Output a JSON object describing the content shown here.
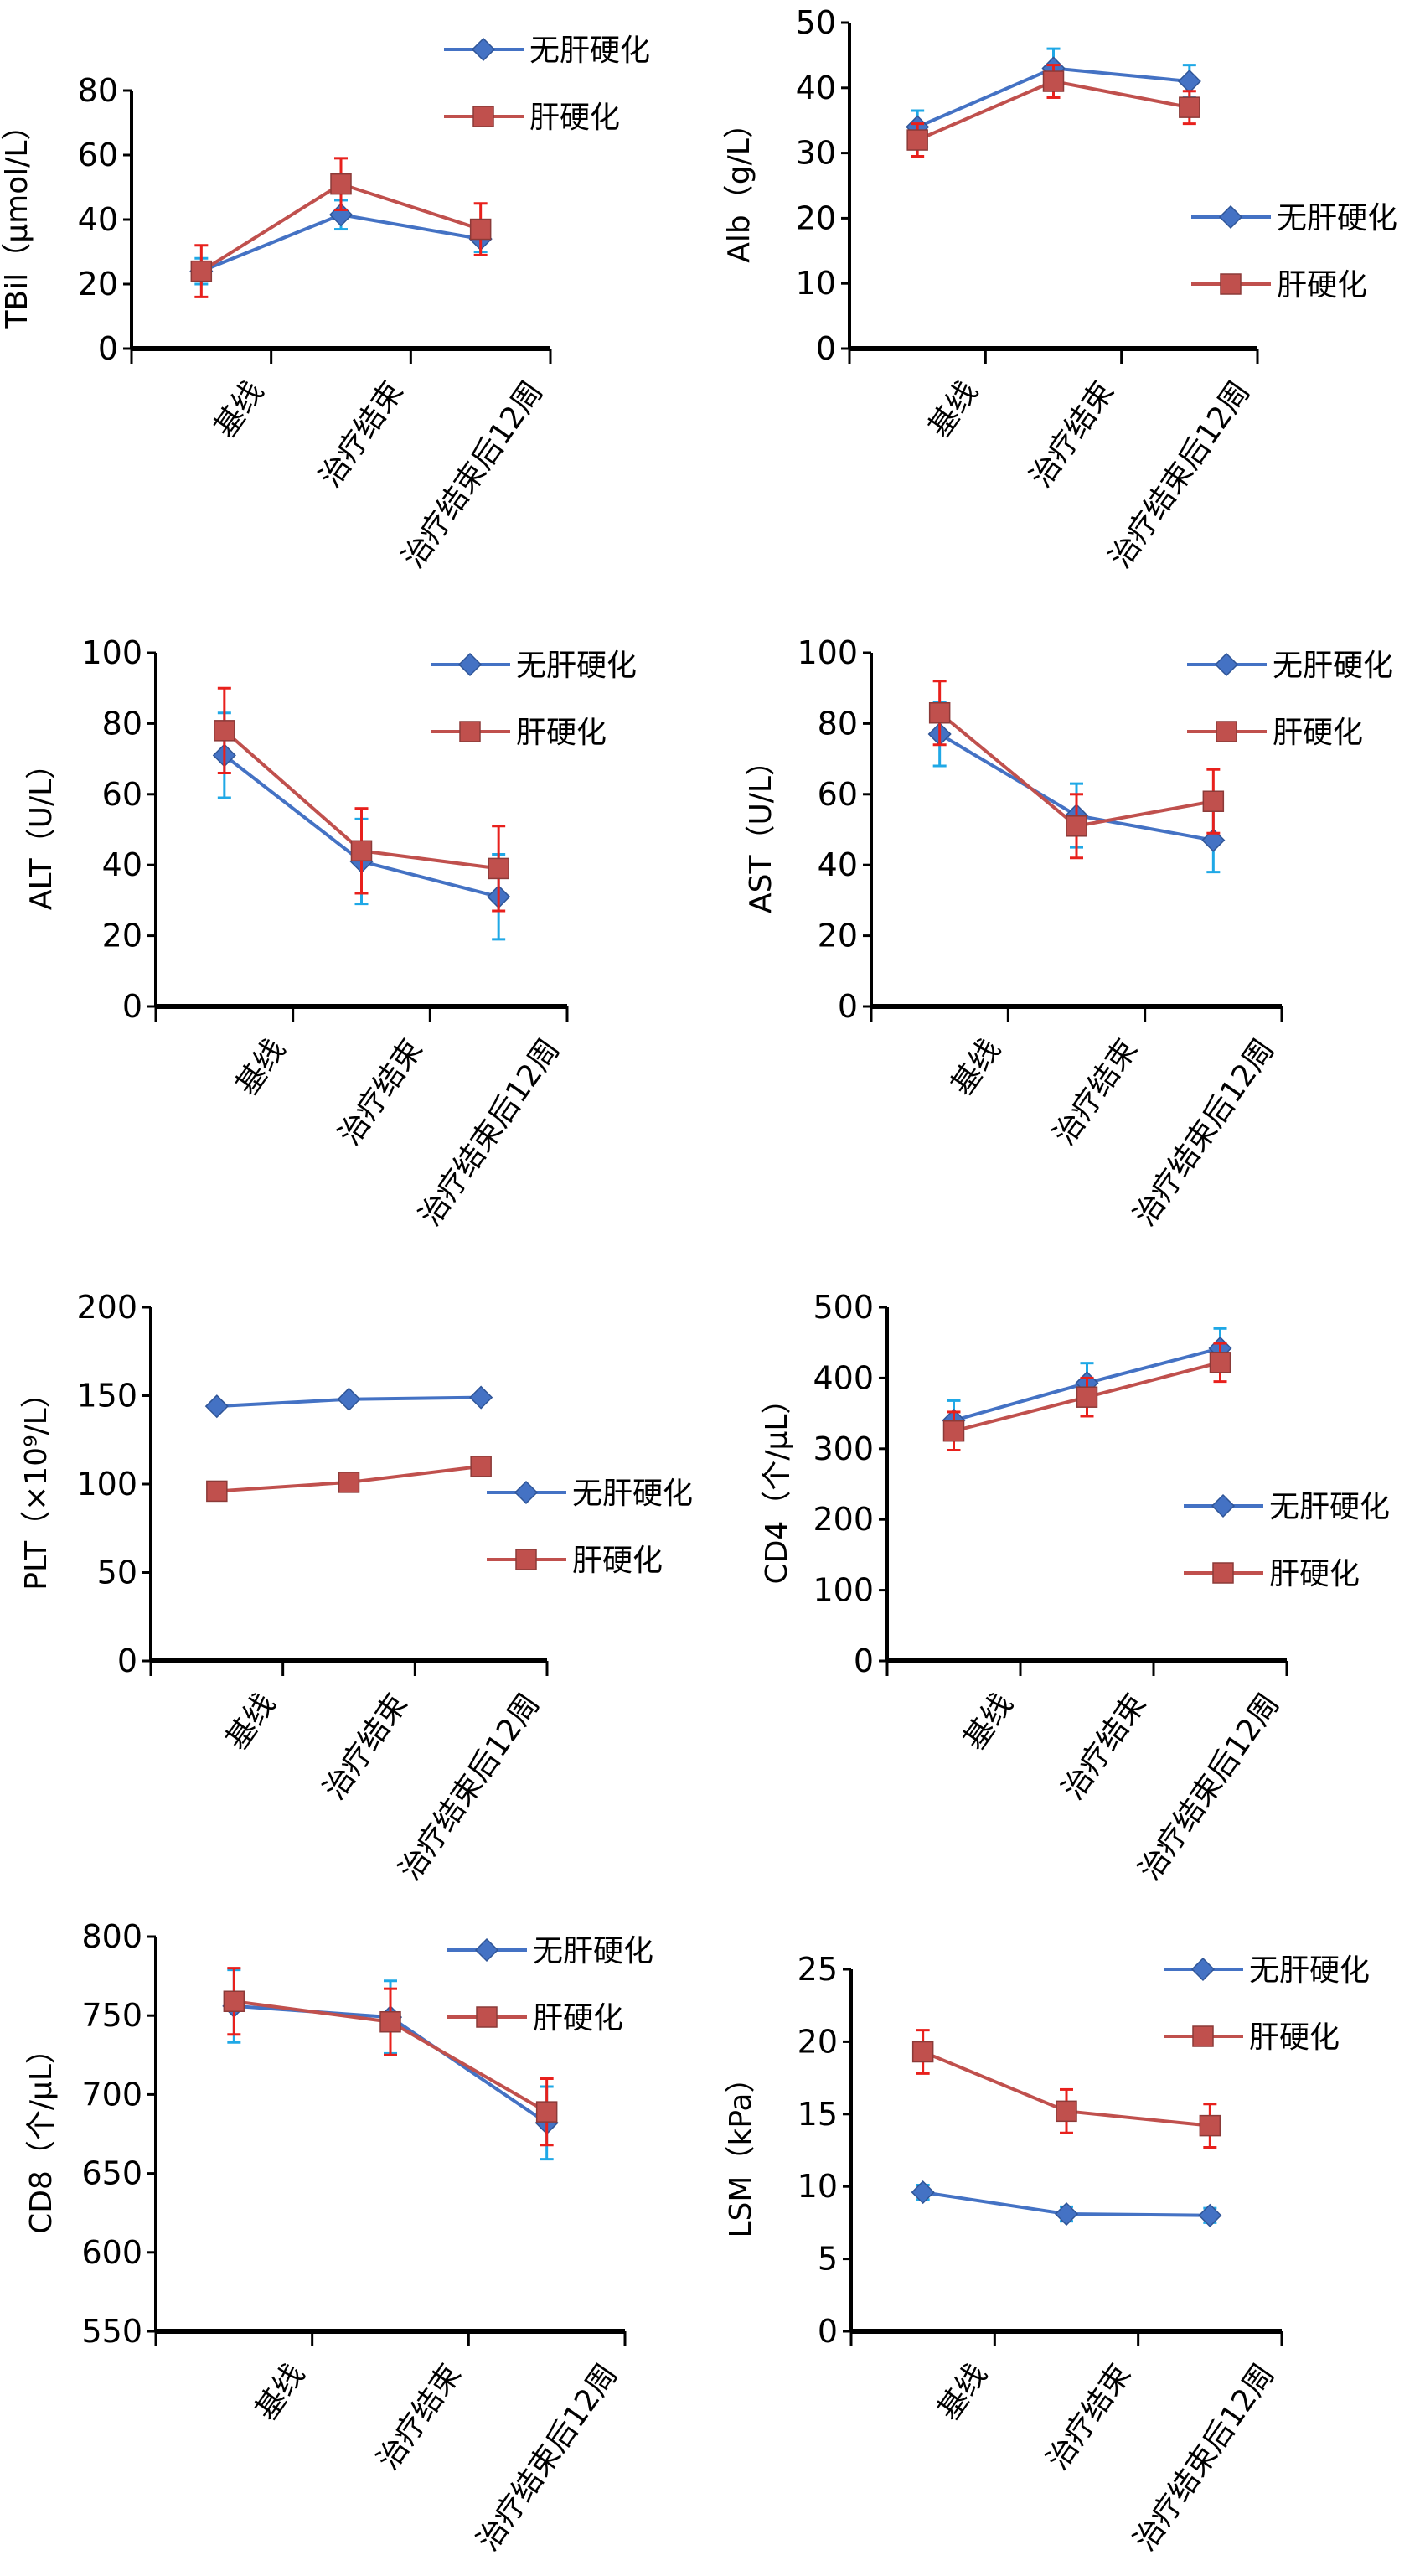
{
  "colors": {
    "no_cirrhosis": "#4472C4",
    "cirrhosis": "#C0504D",
    "no_cirrhosis_err": "#1FA8E6",
    "cirrhosis_err": "#E8201C",
    "axis": "#000000"
  },
  "chart_data": [
    {
      "type": "line",
      "ylabel": "TBil（μmol/L）",
      "categories": [
        "基线",
        "治疗结束",
        "治疗结束后12周"
      ],
      "ylim": [
        0,
        80
      ],
      "yticks": [
        0,
        20,
        40,
        60,
        80
      ],
      "legend": "top-right",
      "series": [
        {
          "name": "无肝硬化",
          "marker": "diamond",
          "values": [
            24,
            41.5,
            34
          ],
          "errors": [
            4,
            4.5,
            4
          ]
        },
        {
          "name": "肝硬化",
          "marker": "square",
          "values": [
            24,
            51,
            37
          ],
          "errors": [
            8,
            8,
            8
          ]
        }
      ]
    },
    {
      "type": "line",
      "ylabel": "Alb（g/L）",
      "categories": [
        "基线",
        "治疗结束",
        "治疗结束后12周"
      ],
      "ylim": [
        0,
        50
      ],
      "yticks": [
        0,
        10,
        20,
        30,
        40,
        50
      ],
      "legend": "right",
      "series": [
        {
          "name": "无肝硬化",
          "marker": "diamond",
          "values": [
            34,
            43,
            41
          ],
          "errors": [
            2.5,
            3,
            2.5
          ]
        },
        {
          "name": "肝硬化",
          "marker": "square",
          "values": [
            32,
            41,
            37
          ],
          "errors": [
            2.5,
            2.5,
            2.5
          ]
        }
      ]
    },
    {
      "type": "line",
      "ylabel": "ALT（U/L）",
      "categories": [
        "基线",
        "治疗结束",
        "治疗结束后12周"
      ],
      "ylim": [
        0,
        100
      ],
      "yticks": [
        0,
        20,
        40,
        60,
        80,
        100
      ],
      "legend": "top-right",
      "series": [
        {
          "name": "无肝硬化",
          "marker": "diamond",
          "values": [
            71,
            41,
            31
          ],
          "errors": [
            12,
            12,
            12
          ]
        },
        {
          "name": "肝硬化",
          "marker": "square",
          "values": [
            78,
            44,
            39
          ],
          "errors": [
            12,
            12,
            12
          ]
        }
      ]
    },
    {
      "type": "line",
      "ylabel": "AST（U/L）",
      "categories": [
        "基线",
        "治疗结束",
        "治疗结束后12周"
      ],
      "ylim": [
        0,
        100
      ],
      "yticks": [
        0,
        20,
        40,
        60,
        80,
        100
      ],
      "legend": "top-right",
      "series": [
        {
          "name": "无肝硬化",
          "marker": "diamond",
          "values": [
            77,
            54,
            47
          ],
          "errors": [
            9,
            9,
            9
          ]
        },
        {
          "name": "肝硬化",
          "marker": "square",
          "values": [
            83,
            51,
            58
          ],
          "errors": [
            9,
            9,
            9
          ]
        }
      ]
    },
    {
      "type": "line",
      "ylabel": "PLT（×10⁹/L）",
      "categories": [
        "基线",
        "治疗结束",
        "治疗结束后12周"
      ],
      "ylim": [
        0,
        200
      ],
      "yticks": [
        0,
        50,
        100,
        150,
        200
      ],
      "legend": "right",
      "series": [
        {
          "name": "无肝硬化",
          "marker": "diamond",
          "values": [
            144,
            148,
            149
          ]
        },
        {
          "name": "肝硬化",
          "marker": "square",
          "values": [
            96,
            101,
            110
          ]
        }
      ]
    },
    {
      "type": "line",
      "ylabel": "CD4（个/μL）",
      "categories": [
        "基线",
        "治疗结束",
        "治疗结束后12周"
      ],
      "ylim": [
        0,
        500
      ],
      "yticks": [
        0,
        100,
        200,
        300,
        400,
        500
      ],
      "legend": "right",
      "series": [
        {
          "name": "无肝硬化",
          "marker": "diamond",
          "values": [
            340,
            393,
            442
          ],
          "errors": [
            28,
            28,
            28
          ]
        },
        {
          "name": "肝硬化",
          "marker": "square",
          "values": [
            325,
            373,
            422
          ],
          "errors": [
            27,
            27,
            27
          ]
        }
      ]
    },
    {
      "type": "line",
      "ylabel": "CD8（个/μL）",
      "categories": [
        "基线",
        "治疗结束",
        "治疗结束后12周"
      ],
      "ylim": [
        550,
        800
      ],
      "yticks": [
        550,
        600,
        650,
        700,
        750,
        800
      ],
      "legend": "top-right",
      "series": [
        {
          "name": "无肝硬化",
          "marker": "diamond",
          "values": [
            756,
            749,
            682
          ],
          "errors": [
            23,
            23,
            23
          ]
        },
        {
          "name": "肝硬化",
          "marker": "square",
          "values": [
            759,
            746,
            689
          ],
          "errors": [
            21,
            21,
            21
          ]
        }
      ]
    },
    {
      "type": "line",
      "ylabel": "LSM（kPa）",
      "categories": [
        "基线",
        "治疗结束",
        "治疗结束后12周"
      ],
      "ylim": [
        0,
        25
      ],
      "yticks": [
        0,
        5,
        10,
        15,
        20,
        25
      ],
      "legend": "top-right",
      "series": [
        {
          "name": "无肝硬化",
          "marker": "diamond",
          "values": [
            9.6,
            8.1,
            8.0
          ],
          "errors": [
            0.5,
            0.5,
            0.5
          ]
        },
        {
          "name": "肝硬化",
          "marker": "square",
          "values": [
            19.3,
            15.2,
            14.2
          ],
          "errors": [
            1.5,
            1.5,
            1.5
          ]
        }
      ]
    }
  ]
}
